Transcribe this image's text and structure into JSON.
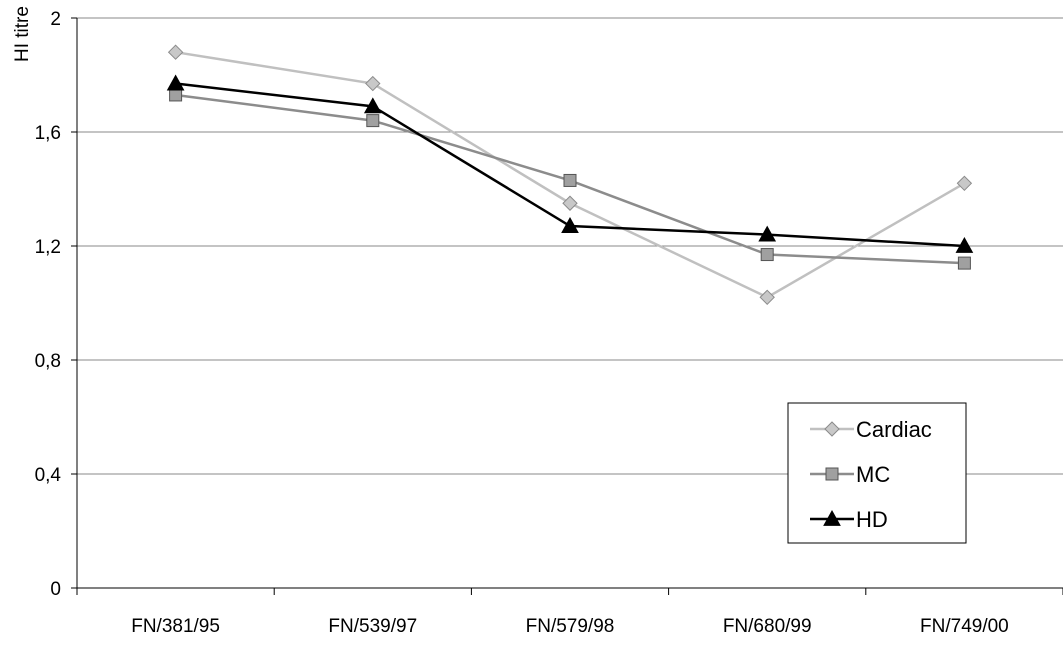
{
  "chart_data": {
    "type": "line",
    "title": "",
    "xlabel": "",
    "ylabel": "HI titre",
    "categories": [
      "FN/381/95",
      "FN/539/97",
      "FN/579/98",
      "FN/680/99",
      "FN/749/00"
    ],
    "y_ticks": [
      "0",
      "0,4",
      "0,8",
      "1,2",
      "1,6",
      "2"
    ],
    "ylim": [
      0,
      2
    ],
    "grid": "horizontal",
    "legend_position": "right",
    "series": [
      {
        "name": "Cardiac",
        "marker": "diamond",
        "color": "#c0c0c0",
        "marker_fill": "#c8c8c8",
        "values": [
          1.88,
          1.77,
          1.35,
          1.02,
          1.42
        ]
      },
      {
        "name": "MC",
        "marker": "square",
        "color": "#8c8c8c",
        "marker_fill": "#a0a0a0",
        "values": [
          1.73,
          1.64,
          1.43,
          1.17,
          1.14
        ]
      },
      {
        "name": "HD",
        "marker": "triangle",
        "color": "#000000",
        "marker_fill": "#000000",
        "values": [
          1.77,
          1.69,
          1.27,
          1.24,
          1.2
        ]
      }
    ]
  }
}
